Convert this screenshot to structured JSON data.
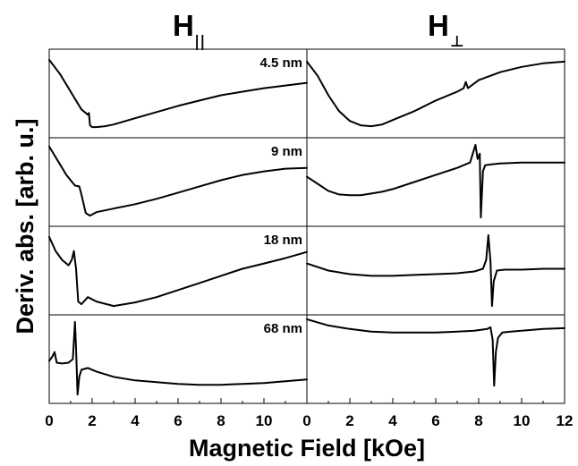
{
  "chart_data": {
    "type": "line",
    "columns": [
      {
        "main": "H",
        "sub": "||"
      },
      {
        "main": "H",
        "sub": "⊥"
      }
    ],
    "xlabel": "Magnetic Field [kOe]",
    "ylabel": "Deriv. abs. [arb. u.]",
    "xlim": [
      0,
      12
    ],
    "x_ticks_left": [
      "0",
      "2",
      "4",
      "6",
      "8",
      "10",
      "0"
    ],
    "x_ticks_right": [
      "2",
      "4",
      "6",
      "8",
      "10",
      "12"
    ],
    "thickness_labels": [
      "4.5 nm",
      "9 nm",
      "18 nm",
      "68 nm"
    ],
    "panels": [
      {
        "row": 0,
        "column": "parallel",
        "ylim": [
          0,
          1
        ],
        "x": [
          0,
          0.5,
          1,
          1.5,
          1.8,
          1.85,
          1.9,
          2.0,
          2.2,
          2.6,
          3,
          4,
          5,
          6,
          7,
          8,
          9,
          10,
          11,
          12
        ],
        "y": [
          0.88,
          0.72,
          0.52,
          0.32,
          0.26,
          0.28,
          0.14,
          0.12,
          0.12,
          0.13,
          0.15,
          0.22,
          0.29,
          0.36,
          0.42,
          0.48,
          0.52,
          0.56,
          0.59,
          0.62
        ]
      },
      {
        "row": 0,
        "column": "perpendicular",
        "ylim": [
          0,
          1
        ],
        "x": [
          0,
          0.5,
          1,
          1.5,
          2,
          2.5,
          3,
          3.5,
          4,
          5,
          6,
          7,
          7.3,
          7.4,
          7.5,
          8,
          9,
          10,
          11,
          12
        ],
        "y": [
          0.86,
          0.7,
          0.48,
          0.3,
          0.19,
          0.14,
          0.13,
          0.15,
          0.2,
          0.3,
          0.42,
          0.52,
          0.56,
          0.63,
          0.56,
          0.65,
          0.74,
          0.8,
          0.84,
          0.86
        ]
      },
      {
        "row": 1,
        "column": "parallel",
        "ylim": [
          0,
          1
        ],
        "x": [
          0,
          0.4,
          0.8,
          1.2,
          1.4,
          1.5,
          1.7,
          1.9,
          2.2,
          3,
          4,
          5,
          6,
          7,
          8,
          9,
          10,
          11,
          12
        ],
        "y": [
          0.9,
          0.74,
          0.58,
          0.46,
          0.45,
          0.36,
          0.15,
          0.12,
          0.16,
          0.2,
          0.25,
          0.31,
          0.38,
          0.45,
          0.52,
          0.58,
          0.62,
          0.65,
          0.66
        ]
      },
      {
        "row": 1,
        "column": "perpendicular",
        "ylim": [
          0,
          1
        ],
        "x": [
          0,
          0.5,
          1,
          1.5,
          2,
          2.5,
          3,
          3.5,
          4,
          5,
          6,
          7,
          7.6,
          7.85,
          7.95,
          8.05,
          8.1,
          8.2,
          8.3,
          8.6,
          9,
          10,
          11,
          12
        ],
        "y": [
          0.56,
          0.48,
          0.4,
          0.36,
          0.35,
          0.35,
          0.37,
          0.39,
          0.42,
          0.5,
          0.58,
          0.66,
          0.72,
          0.92,
          0.76,
          0.82,
          0.1,
          0.62,
          0.69,
          0.7,
          0.71,
          0.72,
          0.72,
          0.72
        ]
      },
      {
        "row": 2,
        "column": "parallel",
        "ylim": [
          0,
          1
        ],
        "x": [
          0,
          0.3,
          0.6,
          0.9,
          1.05,
          1.15,
          1.25,
          1.35,
          1.5,
          1.8,
          2.2,
          3,
          4,
          5,
          6,
          7,
          8,
          9,
          10,
          11,
          12
        ],
        "y": [
          0.88,
          0.72,
          0.62,
          0.56,
          0.62,
          0.72,
          0.52,
          0.15,
          0.12,
          0.2,
          0.15,
          0.1,
          0.14,
          0.2,
          0.28,
          0.36,
          0.44,
          0.52,
          0.58,
          0.64,
          0.71
        ]
      },
      {
        "row": 2,
        "column": "perpendicular",
        "ylim": [
          0,
          1
        ],
        "x": [
          0,
          1,
          2,
          3,
          4,
          5,
          6,
          7,
          7.8,
          8.2,
          8.35,
          8.45,
          8.55,
          8.62,
          8.7,
          8.85,
          9.2,
          10,
          11,
          12
        ],
        "y": [
          0.58,
          0.5,
          0.46,
          0.44,
          0.44,
          0.45,
          0.46,
          0.47,
          0.49,
          0.52,
          0.62,
          0.9,
          0.6,
          0.1,
          0.38,
          0.5,
          0.51,
          0.51,
          0.52,
          0.52
        ]
      },
      {
        "row": 3,
        "column": "parallel",
        "ylim": [
          0,
          1
        ],
        "x": [
          0,
          0.15,
          0.25,
          0.35,
          0.6,
          0.9,
          1.1,
          1.2,
          1.25,
          1.32,
          1.4,
          1.5,
          1.8,
          2.2,
          3,
          4,
          5,
          6,
          7,
          8,
          9,
          10,
          11,
          12
        ],
        "y": [
          0.48,
          0.53,
          0.58,
          0.46,
          0.45,
          0.46,
          0.5,
          0.92,
          0.62,
          0.1,
          0.3,
          0.38,
          0.4,
          0.36,
          0.3,
          0.26,
          0.24,
          0.22,
          0.21,
          0.21,
          0.22,
          0.23,
          0.25,
          0.27
        ]
      },
      {
        "row": 3,
        "column": "perpendicular",
        "ylim": [
          0,
          1
        ],
        "x": [
          0,
          1,
          2,
          3,
          4,
          5,
          6,
          7,
          7.8,
          8.4,
          8.55,
          8.65,
          8.72,
          8.8,
          8.9,
          9.1,
          9.5,
          10,
          11,
          12
        ],
        "y": [
          0.95,
          0.88,
          0.84,
          0.81,
          0.8,
          0.8,
          0.8,
          0.81,
          0.82,
          0.84,
          0.86,
          0.72,
          0.2,
          0.58,
          0.74,
          0.8,
          0.81,
          0.82,
          0.84,
          0.85
        ]
      }
    ]
  }
}
